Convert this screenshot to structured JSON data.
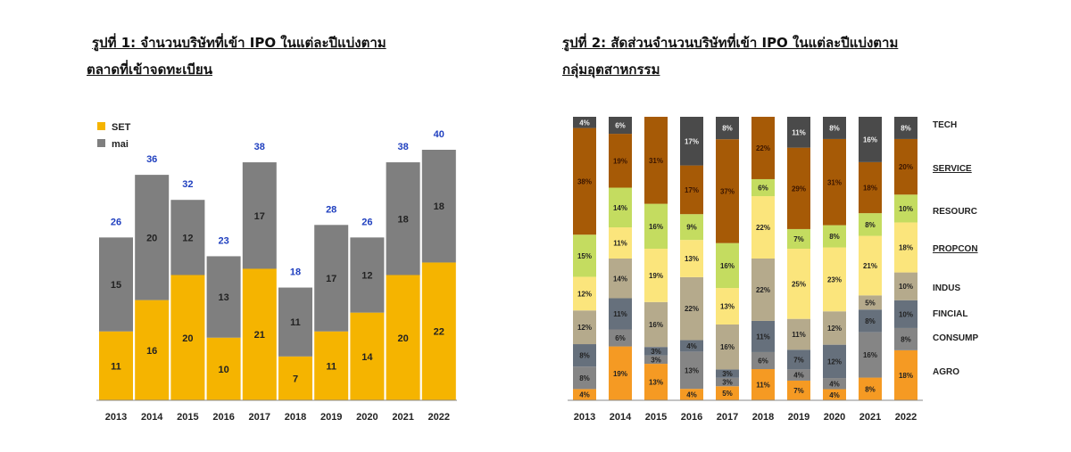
{
  "chart_data": [
    {
      "type": "bar",
      "stacked": true,
      "title_line1": "รูปที่ 1: จำนวนบริษัทที่เข้า IPO ในแต่ละปีแบ่งตาม",
      "title_line2": "ตลาดที่เข้าจดทะเบียน",
      "categories": [
        "2013",
        "2014",
        "2015",
        "2016",
        "2017",
        "2018",
        "2019",
        "2020",
        "2021",
        "2022"
      ],
      "series": [
        {
          "name": "SET",
          "color": "#f5b400",
          "values": [
            11,
            16,
            20,
            10,
            21,
            7,
            11,
            14,
            20,
            22
          ]
        },
        {
          "name": "mai",
          "color": "#7f7f7f",
          "values": [
            15,
            20,
            12,
            13,
            17,
            11,
            17,
            12,
            18,
            18
          ]
        }
      ],
      "totals": [
        26,
        36,
        32,
        23,
        38,
        18,
        28,
        26,
        38,
        40
      ],
      "total_color": "#1f3fbf",
      "legend": "top-left"
    },
    {
      "type": "bar",
      "stacked": true,
      "percent": true,
      "title_line1": "รูปที่ 2: สัดส่วนจำนวนบริษัทที่เข้า IPO ในแต่ละปีแบ่งตาม",
      "title_line2": "กลุ่มอุตสาหกรรม",
      "categories": [
        "2013",
        "2014",
        "2015",
        "2016",
        "2017",
        "2018",
        "2019",
        "2020",
        "2021",
        "2022"
      ],
      "legend": "right",
      "series": [
        {
          "name": "AGRO",
          "color": "#f59a23",
          "values": [
            4,
            19,
            13,
            4,
            5,
            11,
            7,
            4,
            8,
            18
          ]
        },
        {
          "name": "CONSUMP",
          "color": "#858585",
          "values": [
            8,
            6,
            3,
            13,
            3,
            6,
            4,
            4,
            16,
            8
          ]
        },
        {
          "name": "FINCIAL",
          "color": "#66707c",
          "values": [
            8,
            11,
            3,
            4,
            3,
            11,
            7,
            12,
            8,
            10
          ]
        },
        {
          "name": "INDUS",
          "color": "#b5aa8c",
          "values": [
            12,
            14,
            16,
            22,
            16,
            22,
            11,
            12,
            5,
            10
          ]
        },
        {
          "name": "PROPCON",
          "color": "#fbe57c",
          "values": [
            12,
            11,
            19,
            13,
            13,
            22,
            25,
            23,
            21,
            18
          ]
        },
        {
          "name": "RESOURC",
          "color": "#c4dc60",
          "values": [
            15,
            14,
            16,
            9,
            16,
            6,
            7,
            8,
            8,
            10
          ]
        },
        {
          "name": "SERVICE",
          "color": "#a65a06",
          "values": [
            38,
            19,
            31,
            17,
            37,
            22,
            29,
            31,
            18,
            20
          ]
        },
        {
          "name": "TECH",
          "color": "#4a4a4a",
          "values": [
            4,
            6,
            0,
            17,
            8,
            0,
            11,
            8,
            16,
            8
          ]
        }
      ]
    }
  ]
}
